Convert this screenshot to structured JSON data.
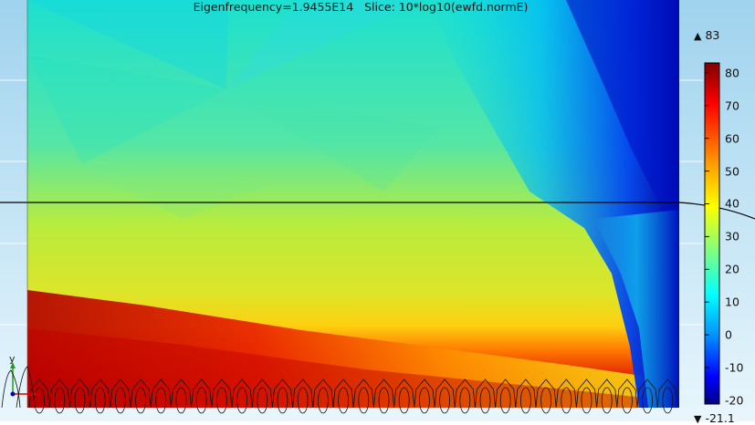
{
  "plot": {
    "title": "Eigenfrequency=1.9455E14   Slice: 10*log10(ewfd.normE)"
  },
  "colorbar": {
    "max_label": "83",
    "min_label": "-21.1",
    "max_symbol": "▲",
    "min_symbol": "▼",
    "ticks": [
      "80",
      "70",
      "60",
      "50",
      "40",
      "30",
      "20",
      "10",
      "0",
      "-10",
      "-20"
    ],
    "colormap": "rainbow",
    "min": -21.1,
    "max": 83
  },
  "axes": {
    "y_label": "y"
  },
  "colors": {
    "outer_background": "#d7eef9",
    "grid_line": "#ffffff",
    "horizontal_line": "#000000",
    "axis_x": "#e00000",
    "axis_y": "#20a020",
    "axis_origin": "#0000c0"
  }
}
